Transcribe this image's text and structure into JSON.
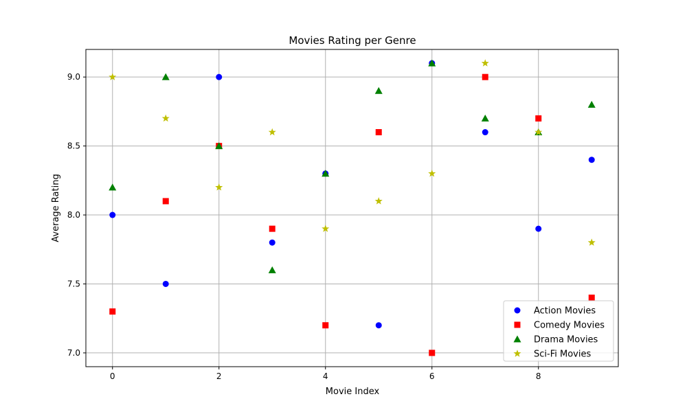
{
  "chart_data": {
    "type": "scatter",
    "title": "Movies Rating per Genre",
    "xlabel": "Movie Index",
    "ylabel": "Average Rating",
    "xlim": [
      -0.5,
      9.5
    ],
    "ylim": [
      6.9,
      9.2
    ],
    "xticks": [
      0,
      2,
      4,
      6,
      8
    ],
    "yticks": [
      7.0,
      7.5,
      8.0,
      8.5,
      9.0
    ],
    "grid": true,
    "legend_position": "lower-right",
    "x": [
      0,
      1,
      2,
      3,
      4,
      5,
      6,
      7,
      8,
      9
    ],
    "series": [
      {
        "name": "Action Movies",
        "marker": "circle",
        "color": "#0000ff",
        "values": [
          8.0,
          7.5,
          9.0,
          7.8,
          8.3,
          7.2,
          9.1,
          8.6,
          7.9,
          8.4
        ]
      },
      {
        "name": "Comedy Movies",
        "marker": "square",
        "color": "#ff0000",
        "values": [
          7.3,
          8.1,
          8.5,
          7.9,
          7.2,
          8.6,
          7.0,
          9.0,
          8.7,
          7.4
        ]
      },
      {
        "name": "Drama Movies",
        "marker": "triangle",
        "color": "#008000",
        "values": [
          8.2,
          9.0,
          8.5,
          7.6,
          8.3,
          8.9,
          9.1,
          8.7,
          8.6,
          8.8
        ]
      },
      {
        "name": "Sci-Fi Movies",
        "marker": "star",
        "color": "#bfbf00",
        "values": [
          9.0,
          8.7,
          8.2,
          8.6,
          7.9,
          8.1,
          8.3,
          9.1,
          8.6,
          7.8
        ]
      }
    ]
  }
}
